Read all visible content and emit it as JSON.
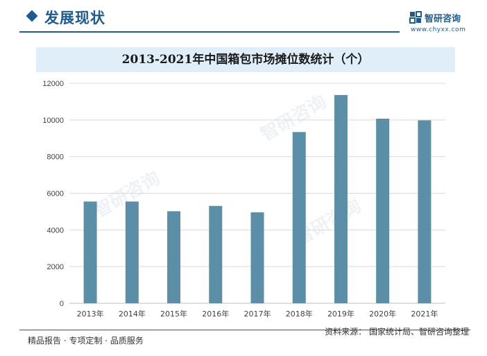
{
  "header": {
    "title": "发展现状"
  },
  "brand": {
    "name": "智研咨询",
    "url": "www.chyxx.com"
  },
  "footer": {
    "left_text": "精品报告 · 专项定制 · 品质服务",
    "source_text": "资料来源：  国家统计局、智研咨询整理"
  },
  "colors": {
    "accent": "#1c5b93",
    "bar": "#5b8fa7",
    "title_bg": "#e0eef9"
  },
  "chart_data": {
    "type": "bar",
    "title": "2013-2021年中国箱包市场摊位数统计（个）",
    "categories": [
      "2013年",
      "2014年",
      "2015年",
      "2016年",
      "2017年",
      "2018年",
      "2019年",
      "2020年",
      "2021年"
    ],
    "values": [
      5550,
      5550,
      5020,
      5310,
      4960,
      9340,
      11360,
      10070,
      9980
    ],
    "ylim": [
      0,
      12000
    ],
    "yticks": [
      0,
      2000,
      4000,
      6000,
      8000,
      10000,
      12000
    ],
    "xlabel": "",
    "ylabel": "",
    "grid": true
  }
}
